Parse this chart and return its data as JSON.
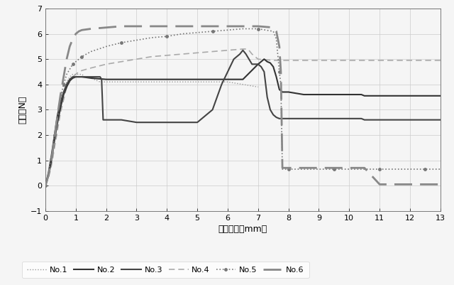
{
  "title": "",
  "xlabel": "引張距離（mm）",
  "ylabel": "荷重（N）",
  "xlim": [
    0,
    13
  ],
  "ylim": [
    -1,
    7
  ],
  "xticks": [
    0,
    1,
    2,
    3,
    4,
    5,
    6,
    7,
    8,
    9,
    10,
    11,
    12,
    13
  ],
  "yticks": [
    -1,
    0,
    1,
    2,
    3,
    4,
    5,
    6,
    7
  ],
  "background_color": "#f5f5f5",
  "series": {
    "No1": {
      "x": [
        0,
        0.05,
        0.1,
        0.2,
        0.3,
        0.4,
        0.5,
        0.6,
        0.7,
        0.8,
        0.9,
        1.0,
        1.1,
        1.2,
        1.3,
        1.4,
        1.5,
        1.6,
        1.7,
        1.8,
        1.9,
        2.0,
        2.5,
        3.0,
        3.5,
        4.0,
        4.5,
        5.0,
        5.5,
        6.0,
        6.5,
        7.0
      ],
      "y": [
        0,
        0.2,
        0.5,
        1.1,
        1.8,
        2.6,
        3.2,
        3.7,
        4.1,
        4.3,
        4.4,
        4.4,
        4.4,
        4.4,
        4.3,
        4.3,
        4.25,
        4.2,
        4.15,
        4.1,
        4.1,
        4.1,
        4.1,
        4.1,
        4.1,
        4.1,
        4.1,
        4.1,
        4.1,
        4.1,
        4.0,
        3.9
      ],
      "color": "#999999",
      "linestyle": "dotted",
      "linewidth": 1.0
    },
    "No2": {
      "x": [
        0,
        0.1,
        0.2,
        0.3,
        0.4,
        0.5,
        0.6,
        0.7,
        0.8,
        0.9,
        1.0,
        1.1,
        1.2,
        1.5,
        2.0,
        2.5,
        3.0,
        3.5,
        4.0,
        4.5,
        5.0,
        5.5,
        6.0,
        6.5,
        7.0,
        7.1,
        7.2,
        7.3,
        7.4,
        7.5,
        7.55,
        7.6,
        7.7,
        7.8,
        8.0,
        8.5,
        9.0,
        9.5,
        10.0,
        10.3,
        10.4,
        10.5,
        11.0,
        11.5,
        12.0,
        12.5,
        13.0
      ],
      "y": [
        0,
        0.4,
        1.0,
        1.8,
        2.5,
        3.1,
        3.6,
        3.9,
        4.15,
        4.25,
        4.3,
        4.3,
        4.3,
        4.25,
        4.2,
        4.2,
        4.2,
        4.2,
        4.2,
        4.2,
        4.2,
        4.2,
        4.2,
        4.2,
        4.8,
        4.9,
        5.0,
        4.9,
        4.85,
        4.7,
        4.5,
        4.3,
        3.8,
        3.7,
        3.7,
        3.6,
        3.6,
        3.6,
        3.6,
        3.6,
        3.6,
        3.55,
        3.55,
        3.55,
        3.55,
        3.55,
        3.55
      ],
      "color": "#333333",
      "linestyle": "solid",
      "linewidth": 1.5
    },
    "No3": {
      "x": [
        0,
        0.1,
        0.2,
        0.3,
        0.4,
        0.5,
        0.6,
        0.7,
        0.8,
        0.9,
        1.0,
        1.1,
        1.2,
        1.3,
        1.4,
        1.5,
        1.6,
        1.7,
        1.8,
        1.85,
        1.9,
        2.0,
        2.5,
        3.0,
        3.5,
        4.0,
        4.5,
        5.0,
        5.5,
        5.8,
        6.0,
        6.2,
        6.4,
        6.5,
        6.6,
        6.8,
        7.0,
        7.1,
        7.2,
        7.3,
        7.4,
        7.5,
        7.6,
        7.7,
        7.8,
        8.0,
        8.5,
        9.0,
        9.5,
        10.0,
        10.3,
        10.4,
        10.5,
        11.0,
        11.5,
        12.0,
        12.5,
        13.0
      ],
      "y": [
        0,
        0.5,
        1.2,
        2.0,
        2.8,
        3.3,
        3.7,
        4.0,
        4.2,
        4.3,
        4.3,
        4.3,
        4.3,
        4.3,
        4.3,
        4.3,
        4.3,
        4.3,
        4.3,
        4.2,
        2.6,
        2.6,
        2.6,
        2.5,
        2.5,
        2.5,
        2.5,
        2.5,
        3.0,
        4.0,
        4.5,
        5.0,
        5.2,
        5.35,
        5.2,
        4.8,
        4.8,
        4.7,
        4.5,
        3.5,
        3.0,
        2.8,
        2.7,
        2.65,
        2.65,
        2.65,
        2.65,
        2.65,
        2.65,
        2.65,
        2.65,
        2.65,
        2.6,
        2.6,
        2.6,
        2.6,
        2.6,
        2.6
      ],
      "color": "#444444",
      "linestyle": "solid",
      "linewidth": 1.5
    },
    "No4": {
      "x": [
        0,
        0.1,
        0.2,
        0.3,
        0.4,
        0.5,
        0.6,
        0.7,
        0.8,
        0.9,
        1.0,
        1.1,
        1.2,
        1.5,
        2.0,
        2.5,
        3.0,
        3.5,
        4.0,
        4.5,
        5.0,
        5.5,
        6.0,
        6.5,
        6.6,
        6.7,
        6.8,
        7.0,
        7.5,
        8.0,
        8.5,
        9.0,
        9.5,
        10.0,
        10.5,
        11.0,
        11.5,
        12.0,
        12.5,
        13.0
      ],
      "y": [
        0,
        0.3,
        0.8,
        1.5,
        2.2,
        2.9,
        3.4,
        3.9,
        4.1,
        4.3,
        4.4,
        4.5,
        4.55,
        4.65,
        4.8,
        4.9,
        5.0,
        5.1,
        5.15,
        5.2,
        5.25,
        5.3,
        5.35,
        5.4,
        5.4,
        5.35,
        5.2,
        5.0,
        4.95,
        4.95,
        4.95,
        4.95,
        4.95,
        4.95,
        4.95,
        4.95,
        4.95,
        4.95,
        4.95,
        4.95
      ],
      "color": "#aaaaaa",
      "linestyle": "dashed",
      "linewidth": 1.2,
      "dashes": [
        5,
        3
      ]
    },
    "No5": {
      "x": [
        0,
        0.1,
        0.2,
        0.3,
        0.4,
        0.5,
        0.6,
        0.7,
        0.8,
        0.9,
        1.0,
        1.1,
        1.2,
        1.5,
        2.0,
        2.5,
        3.0,
        3.5,
        4.0,
        4.5,
        5.0,
        5.5,
        6.0,
        6.5,
        7.0,
        7.5,
        7.6,
        7.7,
        7.75,
        7.8,
        8.0,
        8.5,
        9.0,
        9.5,
        10.0,
        10.5,
        11.0,
        11.5,
        12.0,
        12.5,
        13.0
      ],
      "y": [
        0,
        0.5,
        1.2,
        2.0,
        2.8,
        3.5,
        4.0,
        4.4,
        4.6,
        4.8,
        4.9,
        5.0,
        5.1,
        5.3,
        5.5,
        5.65,
        5.75,
        5.85,
        5.9,
        6.0,
        6.05,
        6.1,
        6.15,
        6.2,
        6.2,
        6.1,
        5.8,
        4.5,
        4.0,
        0.65,
        0.65,
        0.65,
        0.65,
        0.65,
        0.65,
        0.65,
        0.65,
        0.65,
        0.65,
        0.65,
        0.65
      ],
      "color": "#777777",
      "linestyle": "dotted",
      "linewidth": 1.2,
      "marker": "o",
      "markersize": 2.5,
      "markevery": 3
    },
    "No6": {
      "x": [
        0,
        0.1,
        0.2,
        0.3,
        0.4,
        0.5,
        0.6,
        0.7,
        0.8,
        0.9,
        1.0,
        1.1,
        1.2,
        1.5,
        2.0,
        2.5,
        3.0,
        3.5,
        4.0,
        4.5,
        5.0,
        5.5,
        6.0,
        6.5,
        7.0,
        7.5,
        7.6,
        7.7,
        7.75,
        7.8,
        8.0,
        8.5,
        9.0,
        9.5,
        10.0,
        10.5,
        11.0,
        11.5,
        12.0,
        12.2,
        12.5,
        13.0
      ],
      "y": [
        0,
        0.4,
        1.0,
        1.9,
        2.8,
        3.6,
        4.3,
        5.0,
        5.5,
        5.8,
        6.0,
        6.1,
        6.15,
        6.2,
        6.25,
        6.3,
        6.3,
        6.3,
        6.3,
        6.3,
        6.3,
        6.3,
        6.3,
        6.3,
        6.3,
        6.25,
        6.1,
        5.5,
        4.5,
        0.7,
        0.7,
        0.7,
        0.7,
        0.7,
        0.7,
        0.7,
        0.05,
        0.05,
        0.05,
        0.05,
        0.05,
        0.05
      ],
      "color": "#888888",
      "linestyle": "dashed",
      "linewidth": 2.0,
      "dashes": [
        9,
        4
      ]
    }
  }
}
